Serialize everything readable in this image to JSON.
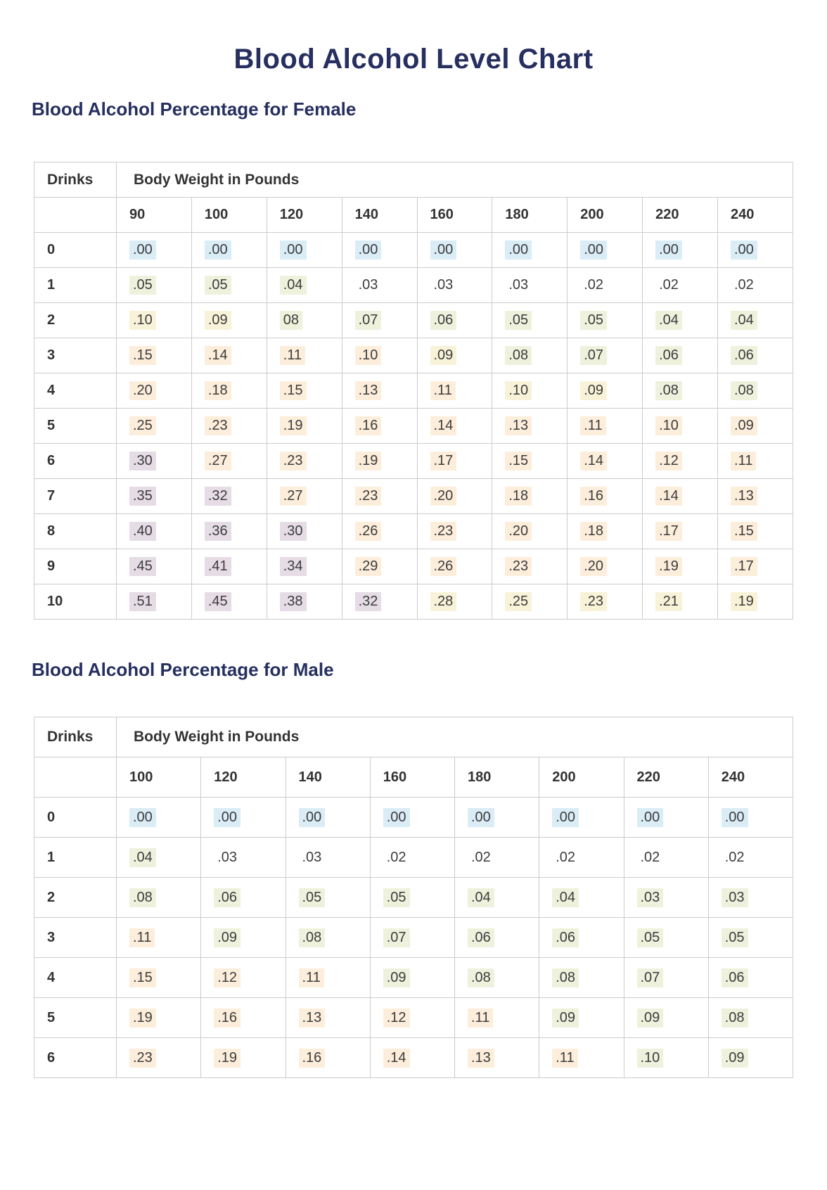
{
  "page": {
    "title": "Blood Alcohol Level Chart"
  },
  "colors": {
    "navy": "#262f5f",
    "cell_text": "#3c3c3c",
    "table_border": "#cccccc"
  },
  "highlight_colors": {
    "b": "#daecf6",
    "g": "#eef2dd",
    "y": "#f8f3d8",
    "p": "#fdeedb",
    "v": "#e5dce6",
    "n": "transparent"
  },
  "highlight_legend": {
    "b": "blue (zero BAC)",
    "g": "green (low BAC)",
    "y": "yellow (moderate BAC)",
    "p": "peach (elevated BAC)",
    "v": "violet (very high BAC)",
    "n": "no highlight"
  },
  "sections": [
    {
      "id": "female",
      "heading": "Blood Alcohol Percentage for Female",
      "table": {
        "drinks_header": "Drinks",
        "weight_header": "Body Weight in Pounds",
        "weights": [
          "90",
          "100",
          "120",
          "140",
          "160",
          "180",
          "200",
          "220",
          "240"
        ],
        "rows": [
          {
            "drinks": "0",
            "values": [
              ".00",
              ".00",
              ".00",
              ".00",
              ".00",
              ".00",
              ".00",
              ".00",
              ".00"
            ],
            "highlights": [
              "b",
              "b",
              "b",
              "b",
              "b",
              "b",
              "b",
              "b",
              "b"
            ]
          },
          {
            "drinks": "1",
            "values": [
              ".05",
              ".05",
              ".04",
              ".03",
              ".03",
              ".03",
              ".02",
              ".02",
              ".02"
            ],
            "highlights": [
              "g",
              "g",
              "g",
              "n",
              "n",
              "n",
              "n",
              "n",
              "n"
            ]
          },
          {
            "drinks": "2",
            "values": [
              ".10",
              ".09",
              "08",
              ".07",
              ".06",
              ".05",
              ".05",
              ".04",
              ".04"
            ],
            "highlights": [
              "y",
              "y",
              "g",
              "g",
              "g",
              "g",
              "g",
              "g",
              "g"
            ]
          },
          {
            "drinks": "3",
            "values": [
              ".15",
              ".14",
              ".11",
              ".10",
              ".09",
              ".08",
              ".07",
              ".06",
              ".06"
            ],
            "highlights": [
              "p",
              "p",
              "p",
              "p",
              "y",
              "g",
              "g",
              "g",
              "g"
            ]
          },
          {
            "drinks": "4",
            "values": [
              ".20",
              ".18",
              ".15",
              ".13",
              ".11",
              ".10",
              ".09",
              ".08",
              ".08"
            ],
            "highlights": [
              "p",
              "p",
              "p",
              "p",
              "p",
              "y",
              "y",
              "g",
              "g"
            ]
          },
          {
            "drinks": "5",
            "values": [
              ".25",
              ".23",
              ".19",
              ".16",
              ".14",
              ".13",
              ".11",
              ".10",
              ".09"
            ],
            "highlights": [
              "p",
              "p",
              "p",
              "p",
              "p",
              "p",
              "p",
              "p",
              "p"
            ]
          },
          {
            "drinks": "6",
            "values": [
              ".30",
              ".27",
              ".23",
              ".19",
              ".17",
              ".15",
              ".14",
              ".12",
              ".11"
            ],
            "highlights": [
              "v",
              "p",
              "p",
              "p",
              "p",
              "p",
              "p",
              "p",
              "p"
            ]
          },
          {
            "drinks": "7",
            "values": [
              ".35",
              ".32",
              ".27",
              ".23",
              ".20",
              ".18",
              ".16",
              ".14",
              ".13"
            ],
            "highlights": [
              "v",
              "v",
              "p",
              "p",
              "p",
              "p",
              "p",
              "p",
              "p"
            ]
          },
          {
            "drinks": "8",
            "values": [
              ".40",
              ".36",
              ".30",
              ".26",
              ".23",
              ".20",
              ".18",
              ".17",
              ".15"
            ],
            "highlights": [
              "v",
              "v",
              "v",
              "p",
              "p",
              "p",
              "p",
              "p",
              "p"
            ]
          },
          {
            "drinks": "9",
            "values": [
              ".45",
              ".41",
              ".34",
              ".29",
              ".26",
              ".23",
              ".20",
              ".19",
              ".17"
            ],
            "highlights": [
              "v",
              "v",
              "v",
              "p",
              "p",
              "p",
              "p",
              "p",
              "p"
            ]
          },
          {
            "drinks": "10",
            "values": [
              ".51",
              ".45",
              ".38",
              ".32",
              ".28",
              ".25",
              ".23",
              ".21",
              ".19"
            ],
            "highlights": [
              "v",
              "v",
              "v",
              "v",
              "y",
              "y",
              "y",
              "y",
              "y"
            ]
          }
        ]
      }
    },
    {
      "id": "male",
      "heading": "Blood Alcohol Percentage for Male",
      "table": {
        "drinks_header": "Drinks",
        "weight_header": "Body Weight in Pounds",
        "weights": [
          "100",
          "120",
          "140",
          "160",
          "180",
          "200",
          "220",
          "240"
        ],
        "rows": [
          {
            "drinks": "0",
            "values": [
              ".00",
              ".00",
              ".00",
              ".00",
              ".00",
              ".00",
              ".00",
              ".00"
            ],
            "highlights": [
              "b",
              "b",
              "b",
              "b",
              "b",
              "b",
              "b",
              "b"
            ]
          },
          {
            "drinks": "1",
            "values": [
              ".04",
              ".03",
              ".03",
              ".02",
              ".02",
              ".02",
              ".02",
              ".02"
            ],
            "highlights": [
              "g",
              "n",
              "n",
              "n",
              "n",
              "n",
              "n",
              "n"
            ]
          },
          {
            "drinks": "2",
            "values": [
              ".08",
              ".06",
              ".05",
              ".05",
              ".04",
              ".04",
              ".03",
              ".03"
            ],
            "highlights": [
              "g",
              "g",
              "g",
              "g",
              "g",
              "g",
              "g",
              "g"
            ]
          },
          {
            "drinks": "3",
            "values": [
              ".11",
              ".09",
              ".08",
              ".07",
              ".06",
              ".06",
              ".05",
              ".05"
            ],
            "highlights": [
              "p",
              "g",
              "g",
              "g",
              "g",
              "g",
              "g",
              "g"
            ]
          },
          {
            "drinks": "4",
            "values": [
              ".15",
              ".12",
              ".11",
              ".09",
              ".08",
              ".08",
              ".07",
              ".06"
            ],
            "highlights": [
              "p",
              "p",
              "p",
              "g",
              "g",
              "g",
              "g",
              "g"
            ]
          },
          {
            "drinks": "5",
            "values": [
              ".19",
              ".16",
              ".13",
              ".12",
              ".11",
              ".09",
              ".09",
              ".08"
            ],
            "highlights": [
              "p",
              "p",
              "p",
              "p",
              "p",
              "g",
              "g",
              "g"
            ]
          },
          {
            "drinks": "6",
            "values": [
              ".23",
              ".19",
              ".16",
              ".14",
              ".13",
              ".11",
              ".10",
              ".09"
            ],
            "highlights": [
              "p",
              "p",
              "p",
              "p",
              "p",
              "p",
              "g",
              "g"
            ]
          }
        ]
      }
    }
  ]
}
